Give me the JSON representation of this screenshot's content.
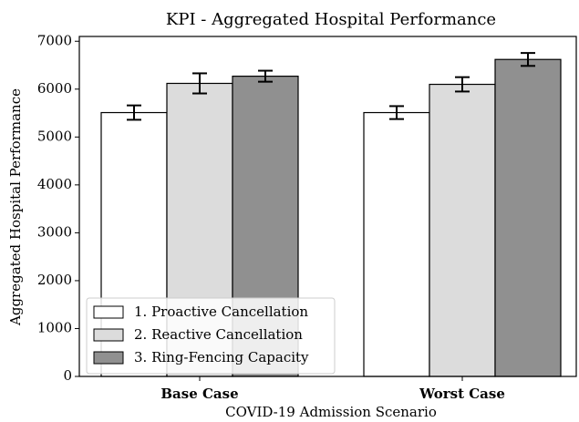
{
  "chart_data": {
    "type": "bar",
    "title": "KPI - Aggregated Hospital Performance",
    "x_label": "COVID-19 Admission Scenario",
    "y_label": "Aggregated Hospital Performance",
    "categories": [
      "Base Case",
      "Worst Case"
    ],
    "series": [
      {
        "name": "1. Proactive Cancellation",
        "color": "#ffffff",
        "values": [
          5510,
          5510
        ],
        "errors": [
          150,
          135
        ]
      },
      {
        "name": "2. Reactive Cancellation",
        "color": "#dcdcdc",
        "values": [
          6120,
          6100
        ],
        "errors": [
          210,
          150
        ]
      },
      {
        "name": "3. Ring-Fencing Capacity",
        "color": "#909090",
        "values": [
          6270,
          6620
        ],
        "errors": [
          115,
          135
        ]
      }
    ],
    "ylim": [
      0,
      7100
    ],
    "yticks": [
      0,
      1000,
      2000,
      3000,
      4000,
      5000,
      6000,
      7000
    ],
    "legend": "lower left"
  }
}
